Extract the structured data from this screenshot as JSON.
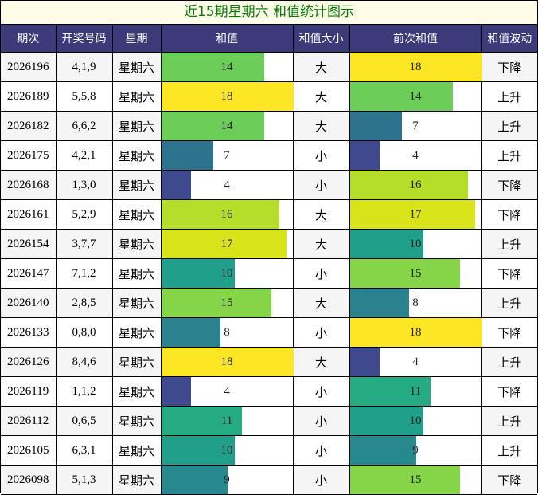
{
  "title": "近15期星期六 和值统计图示",
  "headers": [
    "期次",
    "开奖号码",
    "星期",
    "和值",
    "和值大小",
    "前次和值",
    "和值波动"
  ],
  "chart_data": {
    "type": "table",
    "sum_max": 18,
    "colors": {
      "4": "#3f4a8e",
      "7": "#2e738e",
      "8": "#2b818e",
      "9": "#27898e",
      "10": "#20a08a",
      "11": "#25ac82",
      "14": "#6ccd59",
      "15": "#86d549",
      "16": "#b5de2b",
      "17": "#d9e31a",
      "18": "#fde725"
    },
    "rows": [
      {
        "issue": "2026196",
        "numbers": "4,1,9",
        "weekday": "星期六",
        "sum": 14,
        "size": "大",
        "prev_sum": 18,
        "trend": "下降"
      },
      {
        "issue": "2026189",
        "numbers": "5,5,8",
        "weekday": "星期六",
        "sum": 18,
        "size": "大",
        "prev_sum": 14,
        "trend": "上升"
      },
      {
        "issue": "2026182",
        "numbers": "6,6,2",
        "weekday": "星期六",
        "sum": 14,
        "size": "大",
        "prev_sum": 7,
        "trend": "上升"
      },
      {
        "issue": "2026175",
        "numbers": "4,2,1",
        "weekday": "星期六",
        "sum": 7,
        "size": "小",
        "prev_sum": 4,
        "trend": "上升"
      },
      {
        "issue": "2026168",
        "numbers": "1,3,0",
        "weekday": "星期六",
        "sum": 4,
        "size": "小",
        "prev_sum": 16,
        "trend": "下降"
      },
      {
        "issue": "2026161",
        "numbers": "5,2,9",
        "weekday": "星期六",
        "sum": 16,
        "size": "大",
        "prev_sum": 17,
        "trend": "下降"
      },
      {
        "issue": "2026154",
        "numbers": "3,7,7",
        "weekday": "星期六",
        "sum": 17,
        "size": "大",
        "prev_sum": 10,
        "trend": "上升"
      },
      {
        "issue": "2026147",
        "numbers": "7,1,2",
        "weekday": "星期六",
        "sum": 10,
        "size": "小",
        "prev_sum": 15,
        "trend": "下降"
      },
      {
        "issue": "2026140",
        "numbers": "2,8,5",
        "weekday": "星期六",
        "sum": 15,
        "size": "大",
        "prev_sum": 8,
        "trend": "上升"
      },
      {
        "issue": "2026133",
        "numbers": "0,8,0",
        "weekday": "星期六",
        "sum": 8,
        "size": "小",
        "prev_sum": 18,
        "trend": "下降"
      },
      {
        "issue": "2026126",
        "numbers": "8,4,6",
        "weekday": "星期六",
        "sum": 18,
        "size": "大",
        "prev_sum": 4,
        "trend": "上升"
      },
      {
        "issue": "2026119",
        "numbers": "1,1,2",
        "weekday": "星期六",
        "sum": 4,
        "size": "小",
        "prev_sum": 11,
        "trend": "下降"
      },
      {
        "issue": "2026112",
        "numbers": "0,6,5",
        "weekday": "星期六",
        "sum": 11,
        "size": "小",
        "prev_sum": 10,
        "trend": "上升"
      },
      {
        "issue": "2026105",
        "numbers": "6,3,1",
        "weekday": "星期六",
        "sum": 10,
        "size": "小",
        "prev_sum": 9,
        "trend": "上升"
      },
      {
        "issue": "2026098",
        "numbers": "5,1,3",
        "weekday": "星期六",
        "sum": 9,
        "size": "小",
        "prev_sum": 15,
        "trend": "下降"
      }
    ]
  }
}
